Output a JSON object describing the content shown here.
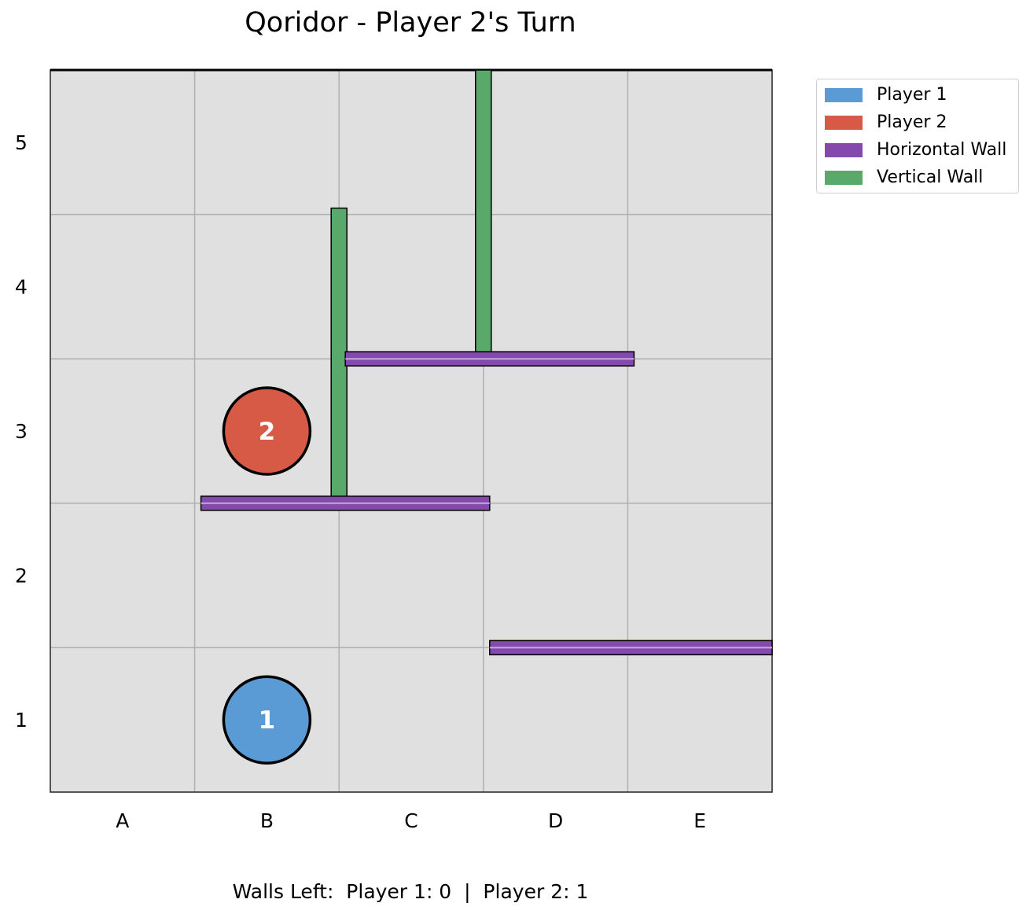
{
  "title": "Qoridor - Player 2's Turn",
  "board": {
    "columns": [
      "A",
      "B",
      "C",
      "D",
      "E"
    ],
    "rows": [
      "1",
      "2",
      "3",
      "4",
      "5"
    ],
    "cell_color": "#e0e0e0",
    "grid_color": "#b0b0b0"
  },
  "players": [
    {
      "label": "1",
      "column": "B",
      "row": 1,
      "color": "#5b9bd5"
    },
    {
      "label": "2",
      "column": "B",
      "row": 3,
      "color": "#d65a45"
    }
  ],
  "walls": [
    {
      "type": "vertical",
      "between_columns": [
        "B",
        "C"
      ],
      "rows": [
        3,
        4
      ]
    },
    {
      "type": "vertical",
      "between_columns": [
        "C",
        "D"
      ],
      "rows": [
        4,
        5
      ]
    },
    {
      "type": "horizontal",
      "between_rows": [
        3,
        4
      ],
      "columns": [
        "C",
        "D"
      ]
    },
    {
      "type": "horizontal",
      "between_rows": [
        2,
        3
      ],
      "columns": [
        "B",
        "C"
      ]
    },
    {
      "type": "horizontal",
      "between_rows": [
        1,
        2
      ],
      "columns": [
        "D",
        "E"
      ]
    }
  ],
  "wall_colors": {
    "horizontal": "#8449ad",
    "vertical": "#59a96a"
  },
  "legend": [
    {
      "label": "Player 1",
      "color": "#5b9bd5"
    },
    {
      "label": "Player 2",
      "color": "#d65a45"
    },
    {
      "label": "Horizontal Wall",
      "color": "#8449ad"
    },
    {
      "label": "Vertical Wall",
      "color": "#59a96a"
    }
  ],
  "footer": "Walls Left:  Player 1: 0  |  Player 2: 1"
}
